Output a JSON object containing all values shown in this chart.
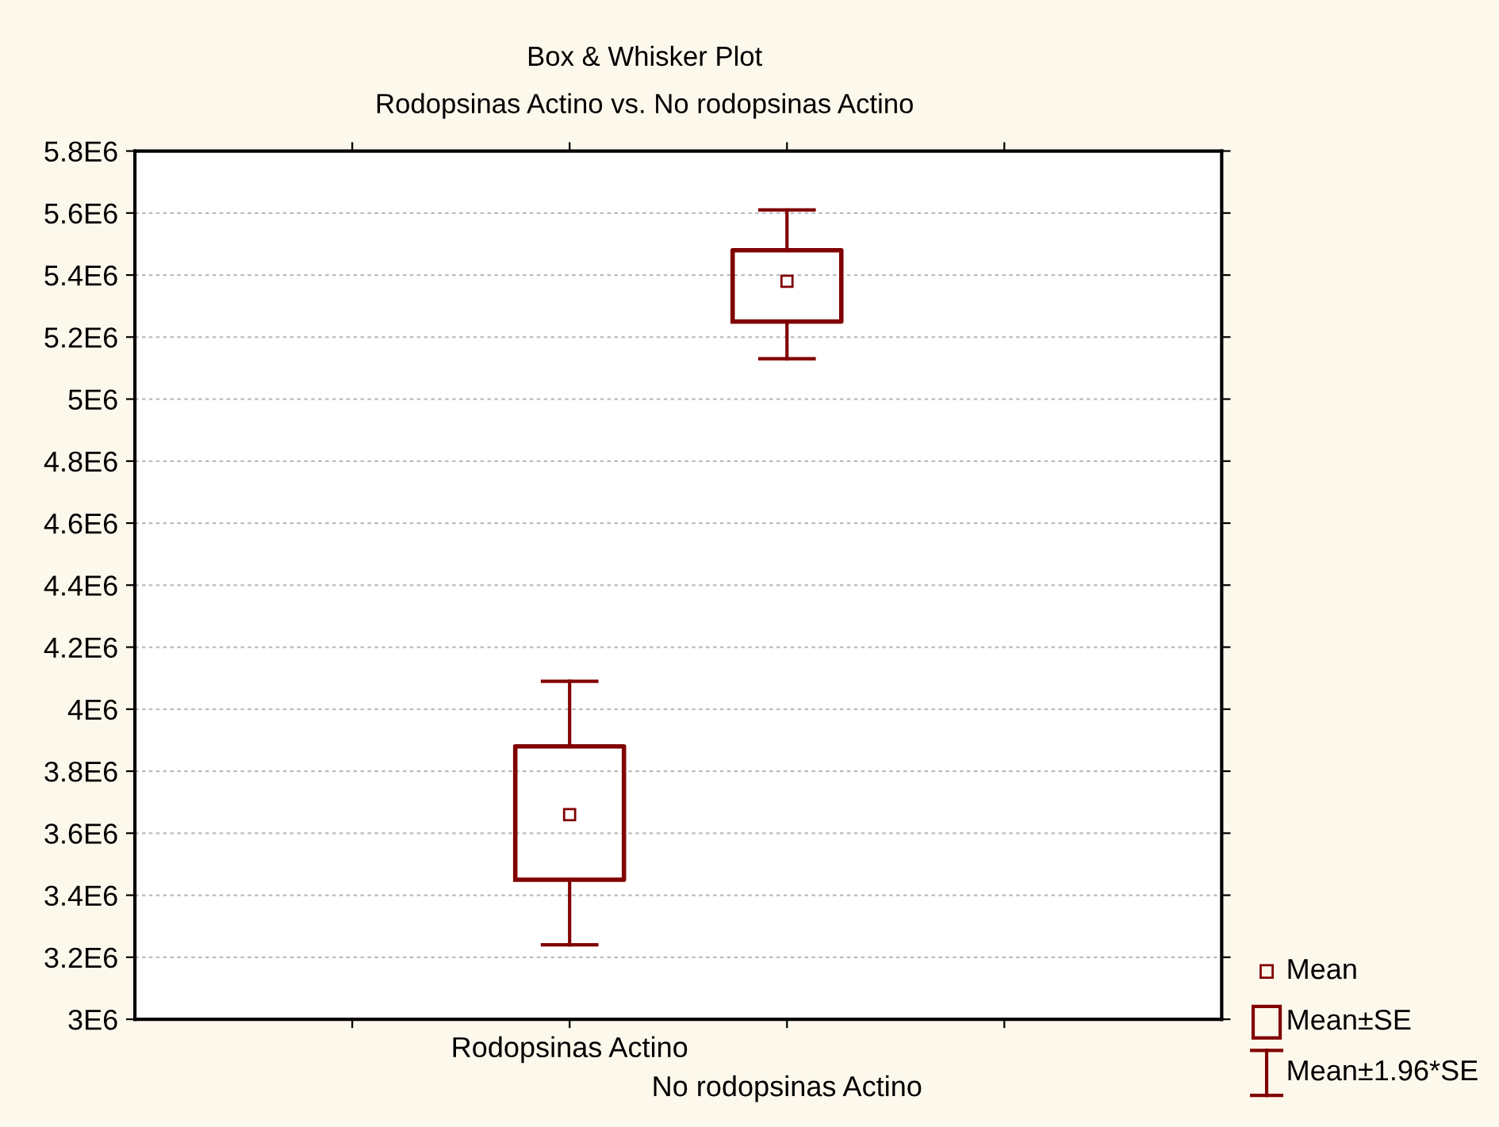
{
  "chart_data": {
    "type": "box",
    "title": "Box & Whisker Plot",
    "subtitle": "Rodopsinas Actino vs. No rodopsinas Actino",
    "categories": [
      "Rodopsinas Actino",
      "No rodopsinas Actino"
    ],
    "boxes": [
      {
        "low": 3240000.0,
        "q1": 3450000.0,
        "q3": 3880000.0,
        "high": 4090000.0,
        "mean": 3660000.0
      },
      {
        "low": 5130000.0,
        "q1": 5250000.0,
        "q3": 5480000.0,
        "high": 5610000.0,
        "mean": 5380000.0
      }
    ],
    "color": "#800000",
    "ylim": [
      3000000.0,
      5800000.0
    ],
    "yticks": [
      {
        "value": 3000000.0,
        "label": "3E6"
      },
      {
        "value": 3200000.0,
        "label": "3.2E6"
      },
      {
        "value": 3400000.0,
        "label": "3.4E6"
      },
      {
        "value": 3600000.0,
        "label": "3.6E6"
      },
      {
        "value": 3800000.0,
        "label": "3.8E6"
      },
      {
        "value": 4000000.0,
        "label": "4E6"
      },
      {
        "value": 4200000.0,
        "label": "4.2E6"
      },
      {
        "value": 4400000.0,
        "label": "4.4E6"
      },
      {
        "value": 4600000.0,
        "label": "4.6E6"
      },
      {
        "value": 4800000.0,
        "label": "4.8E6"
      },
      {
        "value": 5000000.0,
        "label": "5E6"
      },
      {
        "value": 5200000.0,
        "label": "5.2E6"
      },
      {
        "value": 5400000.0,
        "label": "5.4E6"
      },
      {
        "value": 5600000.0,
        "label": "5.6E6"
      },
      {
        "value": 5800000.0,
        "label": "5.8E6"
      }
    ],
    "grid": "y",
    "annotations": [
      "Mean",
      "Mean±SE",
      "Mean±1.96*SE"
    ]
  }
}
